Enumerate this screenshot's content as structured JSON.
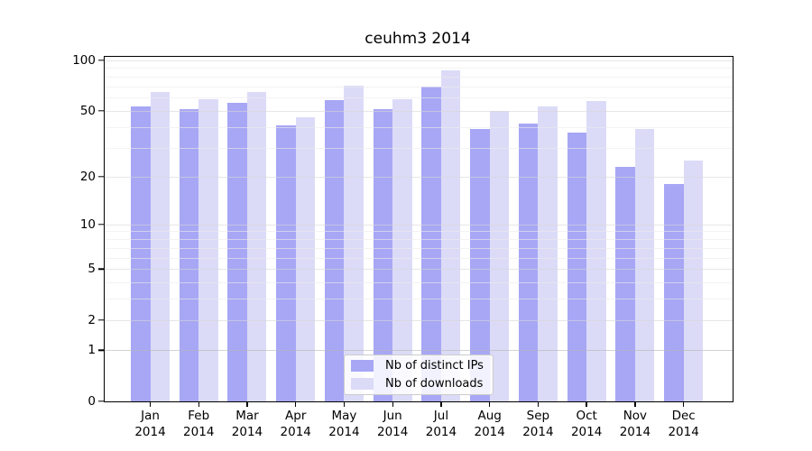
{
  "chart_data": {
    "type": "bar",
    "title": "ceuhm3 2014",
    "categories": [
      "Jan",
      "Feb",
      "Mar",
      "Apr",
      "May",
      "Jun",
      "Jul",
      "Aug",
      "Sep",
      "Oct",
      "Nov",
      "Dec"
    ],
    "year_label": "2014",
    "series": [
      {
        "name": "Nb of distinct IPs",
        "color": "#a7a7f5",
        "values": [
          53,
          51,
          56,
          41,
          58,
          51,
          70,
          39,
          42,
          37,
          23,
          18
        ]
      },
      {
        "name": "Nb of downloads",
        "color": "#dbdbf8",
        "values": [
          65,
          59,
          65,
          46,
          71,
          59,
          87,
          50,
          53,
          57,
          39,
          25
        ]
      }
    ],
    "xlabel": "",
    "ylabel": "",
    "yscale": "log1p",
    "ylim": [
      0,
      105
    ],
    "yticks": [
      0,
      1,
      2,
      5,
      10,
      20,
      50,
      100
    ],
    "minor_gridlines": [
      3,
      4,
      6,
      7,
      8,
      9,
      30,
      40,
      60,
      70,
      80,
      90
    ],
    "grid": true,
    "legend_position": "inside-bottom-center",
    "style": {
      "grid_minor_color": "#efe9e9",
      "grid_major_color": "#d9d6d6",
      "baseline_one_color": "#b5b5b5",
      "spine_color": "#000000",
      "background": "#ffffff"
    }
  }
}
